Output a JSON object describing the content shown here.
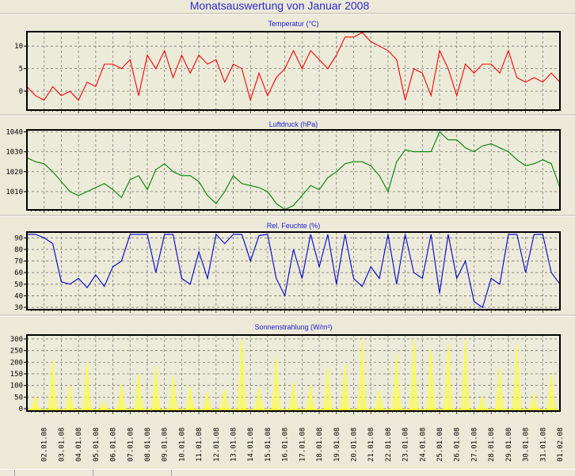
{
  "title": "Monatsauswertung von Januar 2008",
  "chart_data": [
    {
      "type": "line",
      "title": "Temperatur (°C)",
      "color": "#ff0000",
      "ylim": [
        -4.2,
        13.2
      ],
      "yticks": [
        0,
        5,
        10
      ],
      "x_days": 31,
      "samples_per_day": 2,
      "values": [
        1,
        -1,
        -2,
        1,
        -1,
        0,
        -2,
        2,
        1,
        6,
        6,
        5,
        7,
        -1,
        8,
        5,
        9,
        3,
        8,
        4,
        8,
        6,
        7,
        2,
        6,
        5,
        -2,
        4,
        -1,
        3,
        5,
        9,
        5,
        9,
        7,
        5,
        8,
        12,
        12,
        13,
        11,
        10,
        9,
        7,
        -2,
        5,
        4,
        -1,
        9,
        5,
        -1,
        6,
        4,
        6,
        6,
        4,
        9,
        3,
        2,
        3,
        2,
        4,
        2
      ]
    },
    {
      "type": "line",
      "title": "Luftdruck (hPa)",
      "color": "#008000",
      "ylim": [
        1000.8,
        1041
      ],
      "yticks": [
        1010,
        1020,
        1030,
        1040
      ],
      "x_days": 31,
      "samples_per_day": 2,
      "values": [
        1027,
        1025,
        1024,
        1020,
        1015,
        1010,
        1008,
        1010,
        1012,
        1014,
        1011,
        1007,
        1016,
        1018,
        1011,
        1021,
        1024,
        1020,
        1018,
        1018,
        1015,
        1008,
        1004,
        1010,
        1018,
        1014,
        1013,
        1012,
        1010,
        1004,
        1001,
        1003,
        1008,
        1013,
        1011,
        1017,
        1020,
        1024,
        1025,
        1025,
        1023,
        1018,
        1010,
        1025,
        1031,
        1030,
        1030,
        1030,
        1040,
        1036,
        1036,
        1032,
        1030,
        1033,
        1034,
        1032,
        1030,
        1026,
        1023,
        1024,
        1026,
        1024,
        1012
      ]
    },
    {
      "type": "line",
      "title": "Rel. Feuchte (%)",
      "color": "#0000cc",
      "ylim": [
        28,
        95
      ],
      "yticks": [
        30,
        40,
        50,
        60,
        70,
        80,
        90
      ],
      "x_days": 31,
      "samples_per_day": 2,
      "values": [
        93,
        93,
        90,
        85,
        52,
        50,
        55,
        47,
        58,
        48,
        65,
        70,
        93,
        93,
        93,
        60,
        93,
        93,
        55,
        50,
        78,
        55,
        93,
        85,
        93,
        93,
        70,
        92,
        93,
        55,
        40,
        80,
        55,
        93,
        65,
        93,
        50,
        93,
        55,
        48,
        65,
        55,
        93,
        50,
        93,
        60,
        55,
        93,
        42,
        93,
        55,
        70,
        35,
        30,
        55,
        50,
        93,
        93,
        60,
        93,
        93,
        60,
        50
      ]
    },
    {
      "type": "bar",
      "title": "Sonnenstrahlung (W/m²)",
      "color": "#ffff33",
      "ylim": [
        -10,
        317
      ],
      "yticks": [
        0,
        50,
        100,
        150,
        200,
        250,
        300
      ],
      "x_days": 31,
      "daily_peaks": [
        55,
        210,
        100,
        200,
        30,
        105,
        150,
        180,
        140,
        95,
        70,
        85,
        300,
        90,
        225,
        115,
        100,
        175,
        190,
        300,
        80,
        235,
        300,
        260,
        280,
        300,
        55,
        175,
        280,
        65,
        145
      ]
    }
  ],
  "x_tick_labels": [
    "02.01.08",
    "03.01.08",
    "04.01.08",
    "05.01.08",
    "06.01.08",
    "07.01.08",
    "08.01.08",
    "09.01.08",
    "10.01.08",
    "11.01.08",
    "12.01.08",
    "13.01.08",
    "14.01.08",
    "15.01.08",
    "16.01.08",
    "17.01.08",
    "18.01.08",
    "19.01.08",
    "20.01.08",
    "21.01.08",
    "22.01.08",
    "23.01.08",
    "24.01.08",
    "25.01.08",
    "26.01.08",
    "27.01.08",
    "28.01.08",
    "29.01.08",
    "30.01.08",
    "31.01.08",
    "01.02.08"
  ]
}
